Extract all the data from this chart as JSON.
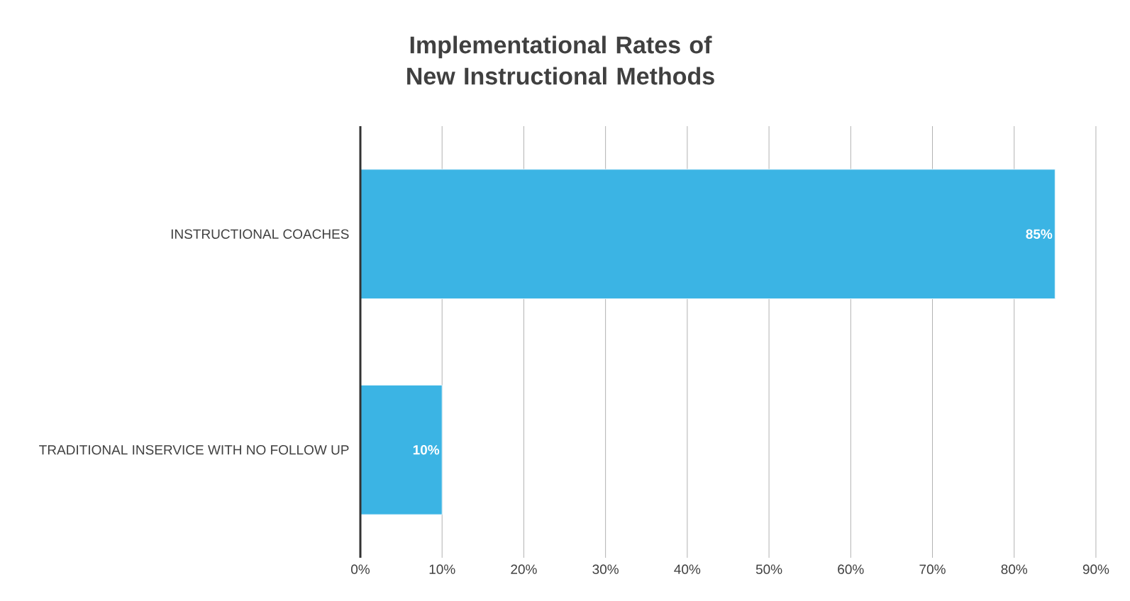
{
  "chart_data": {
    "type": "bar",
    "orientation": "horizontal",
    "title": "Implementational Rates of New Instructional Methods",
    "categories": [
      "INSTRUCTIONAL COACHES",
      "TRADITIONAL INSERVICE WITH NO FOLLOW UP"
    ],
    "values": [
      85,
      10
    ],
    "value_labels": [
      "85%",
      "10%"
    ],
    "color": "#3bb4e4",
    "xlim": [
      0,
      90
    ],
    "xticks": [
      {
        "value": 0,
        "label": "0%"
      },
      {
        "value": 10,
        "label": "10%"
      },
      {
        "value": 20,
        "label": "20%"
      },
      {
        "value": 30,
        "label": "30%"
      },
      {
        "value": 40,
        "label": "40%"
      },
      {
        "value": 50,
        "label": "50%"
      },
      {
        "value": 60,
        "label": "60%"
      },
      {
        "value": 70,
        "label": "70%"
      },
      {
        "value": 80,
        "label": "80%"
      },
      {
        "value": 90,
        "label": "90%"
      }
    ],
    "grid": "x"
  }
}
